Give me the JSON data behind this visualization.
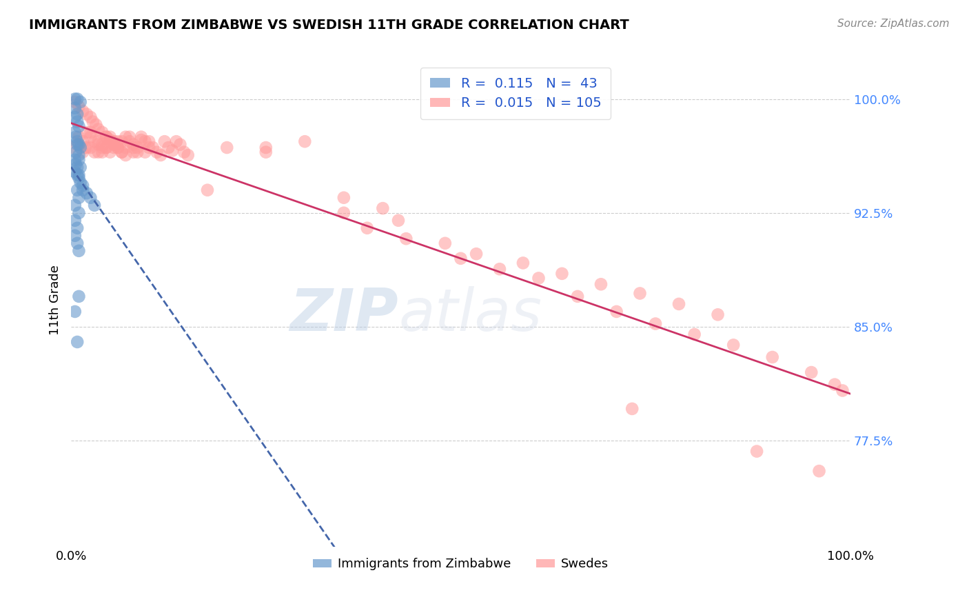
{
  "title": "IMMIGRANTS FROM ZIMBABWE VS SWEDISH 11TH GRADE CORRELATION CHART",
  "source": "Source: ZipAtlas.com",
  "ylabel": "11th Grade",
  "xlim": [
    0.0,
    1.0
  ],
  "ylim": [
    0.705,
    1.03
  ],
  "yticks": [
    0.775,
    0.85,
    0.925,
    1.0
  ],
  "ytick_labels": [
    "77.5%",
    "85.0%",
    "92.5%",
    "100.0%"
  ],
  "xticks": [
    0.0,
    1.0
  ],
  "xtick_labels": [
    "0.0%",
    "100.0%"
  ],
  "background_color": "#ffffff",
  "grid_color": "#cccccc",
  "blue_color": "#6699cc",
  "pink_color": "#ff9999",
  "blue_line_color": "#4466aa",
  "pink_line_color": "#cc3366",
  "legend_r_blue": "0.115",
  "legend_n_blue": "43",
  "legend_r_pink": "0.015",
  "legend_n_pink": "105",
  "blue_points_x": [
    0.005,
    0.008,
    0.012,
    0.005,
    0.008,
    0.005,
    0.008,
    0.01,
    0.005,
    0.006,
    0.008,
    0.01,
    0.012,
    0.006,
    0.01,
    0.005,
    0.006,
    0.008,
    0.005,
    0.01,
    0.01,
    0.012,
    0.015,
    0.015,
    0.02,
    0.025,
    0.008,
    0.01,
    0.008,
    0.012,
    0.008,
    0.01,
    0.005,
    0.03,
    0.01,
    0.005,
    0.008,
    0.005,
    0.008,
    0.01,
    0.01,
    0.005,
    0.008
  ],
  "blue_points_y": [
    1.0,
    1.0,
    0.998,
    0.994,
    0.99,
    0.988,
    0.985,
    0.982,
    0.978,
    0.975,
    0.972,
    0.97,
    0.968,
    0.965,
    0.963,
    0.96,
    0.957,
    0.955,
    0.952,
    0.95,
    0.948,
    0.945,
    0.943,
    0.94,
    0.938,
    0.935,
    0.95,
    0.96,
    0.97,
    0.955,
    0.94,
    0.935,
    0.93,
    0.93,
    0.925,
    0.92,
    0.915,
    0.91,
    0.905,
    0.9,
    0.87,
    0.86,
    0.84
  ],
  "pink_points_x": [
    0.005,
    0.01,
    0.015,
    0.02,
    0.025,
    0.028,
    0.032,
    0.035,
    0.04,
    0.045,
    0.05,
    0.055,
    0.06,
    0.065,
    0.07,
    0.075,
    0.08,
    0.085,
    0.09,
    0.095,
    0.1,
    0.105,
    0.11,
    0.115,
    0.12,
    0.125,
    0.13,
    0.135,
    0.14,
    0.145,
    0.15,
    0.02,
    0.025,
    0.03,
    0.035,
    0.04,
    0.045,
    0.05,
    0.055,
    0.06,
    0.065,
    0.07,
    0.075,
    0.08,
    0.085,
    0.09,
    0.095,
    0.1,
    0.025,
    0.035,
    0.045,
    0.055,
    0.065,
    0.03,
    0.04,
    0.05,
    0.06,
    0.07,
    0.08,
    0.01,
    0.015,
    0.02,
    0.025,
    0.015,
    0.018,
    0.035,
    0.04,
    0.045,
    0.05,
    0.055,
    0.2,
    0.25,
    0.3,
    0.35,
    0.4,
    0.25,
    0.35,
    0.43,
    0.5,
    0.55,
    0.6,
    0.65,
    0.7,
    0.75,
    0.8,
    0.85,
    0.9,
    0.95,
    0.98,
    0.99,
    0.42,
    0.38,
    0.48,
    0.52,
    0.58,
    0.63,
    0.68,
    0.73,
    0.78,
    0.83,
    0.0,
    0.175,
    0.72,
    0.88,
    0.96
  ],
  "pink_points_y": [
    0.998,
    0.995,
    0.992,
    0.99,
    0.988,
    0.985,
    0.983,
    0.98,
    0.978,
    0.975,
    0.973,
    0.97,
    0.968,
    0.965,
    0.963,
    0.975,
    0.97,
    0.968,
    0.973,
    0.965,
    0.972,
    0.968,
    0.965,
    0.963,
    0.972,
    0.968,
    0.966,
    0.972,
    0.97,
    0.965,
    0.963,
    0.978,
    0.975,
    0.972,
    0.97,
    0.965,
    0.968,
    0.972,
    0.97,
    0.968,
    0.965,
    0.975,
    0.972,
    0.968,
    0.965,
    0.975,
    0.972,
    0.968,
    0.968,
    0.965,
    0.975,
    0.968,
    0.972,
    0.965,
    0.968,
    0.975,
    0.972,
    0.968,
    0.965,
    0.975,
    0.972,
    0.968,
    0.978,
    0.965,
    0.968,
    0.972,
    0.97,
    0.968,
    0.965,
    0.972,
    0.968,
    0.965,
    0.972,
    0.935,
    0.928,
    0.968,
    0.925,
    0.908,
    0.895,
    0.888,
    0.882,
    0.87,
    0.86,
    0.852,
    0.845,
    0.838,
    0.83,
    0.82,
    0.812,
    0.808,
    0.92,
    0.915,
    0.905,
    0.898,
    0.892,
    0.885,
    0.878,
    0.872,
    0.865,
    0.858,
    0.968,
    0.94,
    0.796,
    0.768,
    0.755
  ]
}
